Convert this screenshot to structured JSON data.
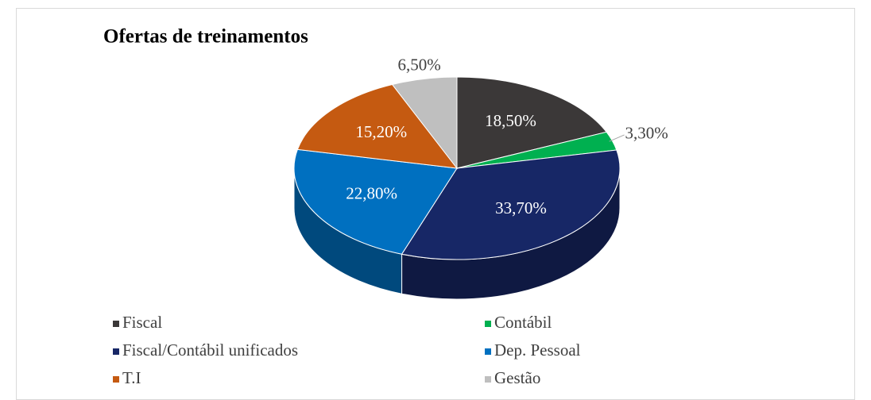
{
  "chart_data": {
    "type": "pie3d",
    "title": "Ofertas de treinamentos",
    "categories": [
      "Fiscal",
      "Contábil",
      "Fiscal/Contábil unificados",
      "Dep. Pessoal",
      "T.I",
      "Gestão"
    ],
    "values": [
      18.5,
      3.3,
      33.7,
      22.8,
      15.2,
      6.5
    ],
    "value_labels": [
      "18,50%",
      "3,30%",
      "33,70%",
      "22,80%",
      "15,20%",
      "6,50%"
    ],
    "colors": [
      "#3b3838",
      "#00b050",
      "#172766",
      "#0070c0",
      "#c55a11",
      "#bfbfbf"
    ],
    "legend": "bottom"
  }
}
